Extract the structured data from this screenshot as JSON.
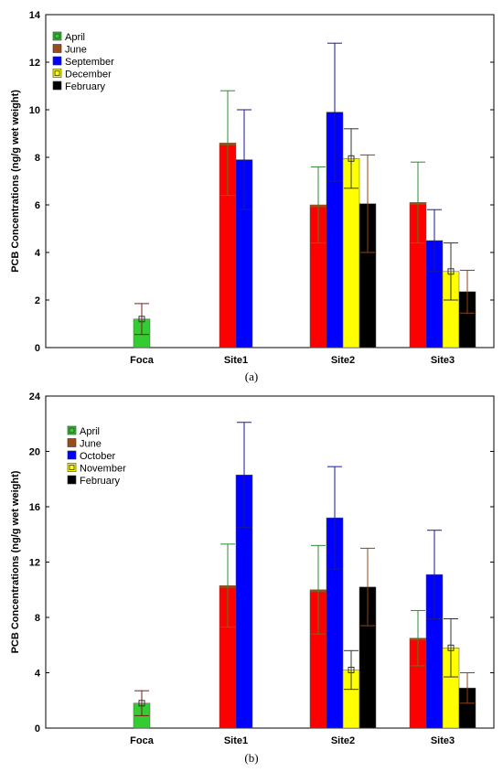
{
  "chart_data": [
    {
      "type": "bar",
      "panel_caption": "(a)",
      "ylabel": "PCB Concentrations (ng/g wet weight)",
      "ylim": [
        0,
        14
      ],
      "yticks": [
        0,
        2,
        4,
        6,
        8,
        10,
        12,
        14
      ],
      "categories": [
        "Foca",
        "Site1",
        "Site2",
        "Site3"
      ],
      "legend_position": "top-left",
      "series": [
        {
          "name": "April",
          "color": "#33cc33",
          "marker": "square-dot",
          "values": [
            1.2,
            null,
            null,
            null
          ],
          "error": [
            0.65,
            null,
            null,
            null
          ]
        },
        {
          "name": "June",
          "color": "#ff0000",
          "legend_color": "#994d1a",
          "top_color": "#994d1a",
          "values": [
            null,
            8.6,
            6.0,
            6.1
          ],
          "error": [
            null,
            2.2,
            1.6,
            1.7
          ]
        },
        {
          "name": "September",
          "color": "#0000ff",
          "values": [
            null,
            7.9,
            9.9,
            4.5
          ],
          "error": [
            null,
            2.1,
            2.9,
            1.3
          ]
        },
        {
          "name": "December",
          "color": "#ffff00",
          "marker": "square",
          "values": [
            null,
            null,
            7.95,
            3.2
          ],
          "error": [
            null,
            null,
            1.25,
            1.2
          ]
        },
        {
          "name": "February",
          "color": "#000000",
          "values": [
            null,
            null,
            6.05,
            2.35
          ],
          "error": [
            null,
            null,
            2.05,
            0.9
          ]
        }
      ]
    },
    {
      "type": "bar",
      "panel_caption": "(b)",
      "ylabel": "PCB Concentrations (ng/g wet weight)",
      "ylim": [
        0,
        24
      ],
      "yticks": [
        0,
        4,
        8,
        12,
        16,
        20,
        24
      ],
      "categories": [
        "Foca",
        "Site1",
        "Site2",
        "Site3"
      ],
      "legend_position": "top-left",
      "series": [
        {
          "name": "April",
          "color": "#33cc33",
          "marker": "square-dot",
          "values": [
            1.8,
            null,
            null,
            null
          ],
          "error": [
            0.9,
            null,
            null,
            null
          ]
        },
        {
          "name": "June",
          "color": "#ff0000",
          "legend_color": "#994d1a",
          "top_color": "#994d1a",
          "values": [
            null,
            10.3,
            10.0,
            6.5
          ],
          "error": [
            null,
            3.0,
            3.2,
            2.0
          ]
        },
        {
          "name": "October",
          "color": "#0000ff",
          "values": [
            null,
            18.3,
            15.2,
            11.1
          ],
          "error": [
            null,
            3.8,
            3.7,
            3.2
          ]
        },
        {
          "name": "November",
          "color": "#ffff00",
          "marker": "square",
          "values": [
            null,
            null,
            4.2,
            5.8
          ],
          "error": [
            null,
            null,
            1.4,
            2.1
          ]
        },
        {
          "name": "February",
          "color": "#000000",
          "values": [
            null,
            null,
            10.2,
            2.9
          ],
          "error": [
            null,
            null,
            2.8,
            1.1
          ]
        }
      ]
    }
  ]
}
